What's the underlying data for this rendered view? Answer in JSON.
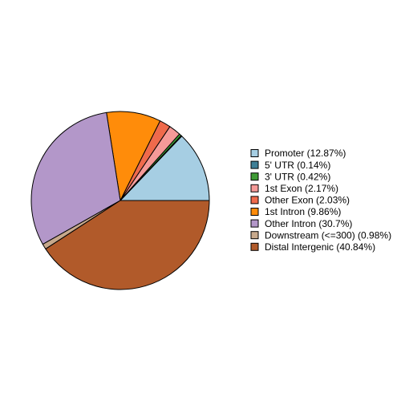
{
  "chart_data": {
    "type": "pie",
    "categories": [
      "Promoter (12.87%)",
      "5' UTR (0.14%)",
      "3' UTR (0.42%)",
      "1st Exon (2.17%)",
      "Other Exon (2.03%)",
      "1st Intron (9.86%)",
      "Other Intron (30.7%)",
      "Downstream (<=300) (0.98%)",
      "Distal Intergenic (40.84%)"
    ],
    "values": [
      12.87,
      0.14,
      0.42,
      2.17,
      2.03,
      9.86,
      30.7,
      0.98,
      40.84
    ],
    "colors": [
      "#a6cee3",
      "#3f7f96",
      "#3e9a35",
      "#f59a98",
      "#ef6a4c",
      "#ff8c0a",
      "#b397c9",
      "#c7a98c",
      "#b15a2a"
    ],
    "legend": "right"
  }
}
